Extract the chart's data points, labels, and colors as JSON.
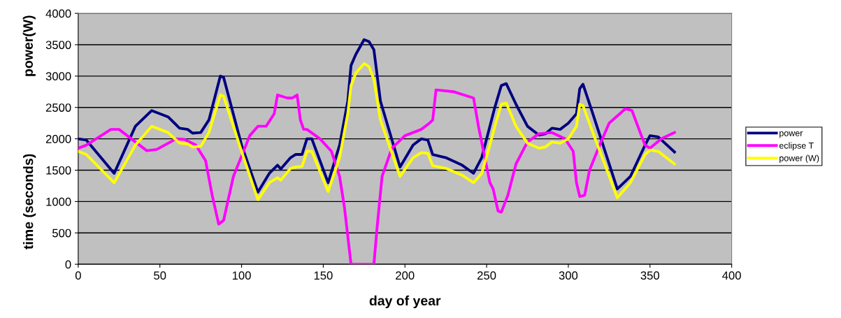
{
  "chart_data": {
    "type": "line",
    "xlabel": "day of year",
    "ylabel": "time (seconds)",
    "annotations": [
      "power(W)"
    ],
    "xlim": [
      0,
      400
    ],
    "xticks": [
      0,
      50,
      100,
      150,
      200,
      250,
      300,
      350,
      400
    ],
    "ylim": [
      0,
      4000
    ],
    "yticks": [
      0,
      500,
      1000,
      1500,
      2000,
      2500,
      3000,
      3500,
      4000
    ],
    "grid": "y",
    "legend": "right",
    "marker": "none",
    "line_style": "solid",
    "series": [
      {
        "name": "power",
        "color": "#000080",
        "x": [
          0,
          5,
          22,
          35,
          45,
          55,
          62,
          67,
          70,
          75,
          80,
          87,
          89,
          100,
          110,
          117,
          122,
          124,
          130,
          133,
          137,
          140,
          143,
          153,
          160,
          165,
          167,
          170,
          175,
          178,
          181,
          185,
          197,
          205,
          210,
          214,
          217,
          225,
          235,
          242,
          247,
          252,
          255,
          259,
          262,
          268,
          275,
          282,
          286,
          290,
          295,
          300,
          305,
          307,
          309,
          315,
          330,
          338,
          347,
          350,
          355,
          365
        ],
        "values": [
          2000,
          1980,
          1450,
          2200,
          2450,
          2350,
          2170,
          2150,
          2090,
          2100,
          2300,
          3000,
          2980,
          1900,
          1150,
          1450,
          1580,
          1520,
          1700,
          1750,
          1750,
          2000,
          2000,
          1300,
          1900,
          2600,
          3170,
          3350,
          3580,
          3550,
          3420,
          2600,
          1550,
          1900,
          2000,
          1980,
          1750,
          1700,
          1580,
          1450,
          1700,
          2200,
          2500,
          2850,
          2880,
          2550,
          2200,
          2060,
          2080,
          2170,
          2150,
          2250,
          2400,
          2800,
          2870,
          2400,
          1200,
          1400,
          1900,
          2050,
          2030,
          1790
        ]
      },
      {
        "name": "eclipse T",
        "color": "#ff00ff",
        "x": [
          0,
          5,
          20,
          25,
          35,
          42,
          48,
          60,
          65,
          72,
          78,
          82,
          86,
          89,
          95,
          105,
          110,
          115,
          120,
          122,
          128,
          131,
          134,
          136,
          138,
          140,
          148,
          155,
          160,
          163,
          167,
          181,
          183,
          186,
          192,
          200,
          210,
          215,
          217,
          219,
          230,
          242,
          245,
          252,
          254,
          257,
          259,
          263,
          268,
          275,
          282,
          290,
          298,
          303,
          305,
          307,
          310,
          313,
          320,
          325,
          335,
          339,
          344,
          347,
          350,
          357,
          365
        ],
        "values": [
          1850,
          1900,
          2150,
          2150,
          1950,
          1810,
          1830,
          2000,
          1990,
          1900,
          1650,
          1100,
          640,
          700,
          1400,
          2050,
          2200,
          2200,
          2400,
          2700,
          2650,
          2650,
          2700,
          2300,
          2150,
          2150,
          2000,
          1800,
          1400,
          900,
          0,
          0,
          600,
          1400,
          1850,
          2050,
          2150,
          2250,
          2300,
          2780,
          2750,
          2650,
          2200,
          1300,
          1200,
          850,
          830,
          1100,
          1600,
          1950,
          2080,
          2100,
          2000,
          1800,
          1300,
          1080,
          1100,
          1500,
          1950,
          2250,
          2480,
          2450,
          2100,
          1900,
          1850,
          2000,
          2100
        ]
      },
      {
        "name": "power (W)",
        "color": "#ffff00",
        "x": [
          0,
          5,
          22,
          35,
          45,
          55,
          62,
          67,
          70,
          75,
          80,
          87,
          89,
          100,
          110,
          117,
          122,
          124,
          130,
          133,
          137,
          140,
          143,
          153,
          160,
          165,
          167,
          170,
          175,
          178,
          181,
          185,
          197,
          205,
          210,
          214,
          217,
          225,
          235,
          242,
          247,
          252,
          255,
          259,
          262,
          268,
          275,
          282,
          286,
          290,
          295,
          300,
          305,
          307,
          309,
          315,
          330,
          338,
          347,
          350,
          355,
          365
        ],
        "values": [
          1800,
          1750,
          1300,
          1900,
          2200,
          2100,
          1930,
          1920,
          1870,
          1880,
          2100,
          2700,
          2680,
          1800,
          1030,
          1300,
          1380,
          1340,
          1530,
          1550,
          1560,
          1800,
          1800,
          1160,
          1700,
          2400,
          2850,
          3050,
          3200,
          3150,
          2950,
          2300,
          1400,
          1700,
          1780,
          1770,
          1570,
          1530,
          1420,
          1300,
          1450,
          1900,
          2200,
          2550,
          2570,
          2200,
          1930,
          1850,
          1870,
          1950,
          1930,
          2000,
          2200,
          2550,
          2530,
          2100,
          1060,
          1300,
          1750,
          1820,
          1800,
          1600
        ]
      }
    ]
  }
}
